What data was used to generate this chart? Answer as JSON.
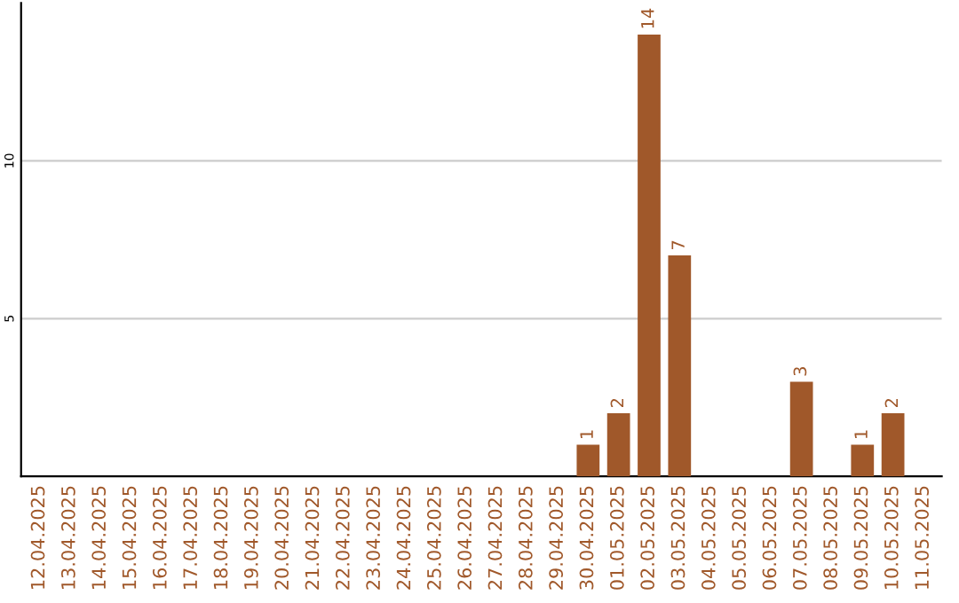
{
  "chart_data": {
    "type": "bar",
    "categories": [
      "12.04.2025",
      "13.04.2025",
      "14.04.2025",
      "15.04.2025",
      "16.04.2025",
      "17.04.2025",
      "18.04.2025",
      "19.04.2025",
      "20.04.2025",
      "21.04.2025",
      "22.04.2025",
      "23.04.2025",
      "24.04.2025",
      "25.04.2025",
      "26.04.2025",
      "27.04.2025",
      "28.04.2025",
      "29.04.2025",
      "30.04.2025",
      "01.05.2025",
      "02.05.2025",
      "03.05.2025",
      "04.05.2025",
      "05.05.2025",
      "06.05.2025",
      "07.05.2025",
      "08.05.2025",
      "09.05.2025",
      "10.05.2025",
      "11.05.2025"
    ],
    "values": [
      0,
      0,
      0,
      0,
      0,
      0,
      0,
      0,
      0,
      0,
      0,
      0,
      0,
      0,
      0,
      0,
      0,
      0,
      1,
      2,
      14,
      7,
      0,
      0,
      0,
      3,
      0,
      1,
      2,
      0
    ],
    "value_labels": [
      null,
      null,
      null,
      null,
      null,
      null,
      null,
      null,
      null,
      null,
      null,
      null,
      null,
      null,
      null,
      null,
      null,
      null,
      "1",
      "2",
      "14",
      "7",
      null,
      null,
      null,
      "3",
      null,
      "1",
      "2",
      null
    ],
    "color": "#a0582a",
    "ylim": [
      0,
      15
    ],
    "yticks": [
      5,
      10
    ],
    "grid": "y"
  }
}
